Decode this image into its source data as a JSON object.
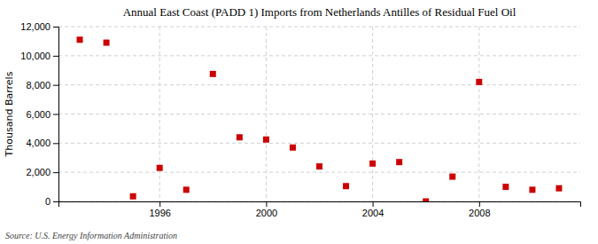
{
  "chart_data": {
    "type": "scatter",
    "title": "Annual East Coast (PADD 1) Imports from Netherlands Antilles of Residual Fuel Oil",
    "ylabel": "Thousand Barrels",
    "annotation": "Source: U.S. Energy Information Administration",
    "x": [
      1993,
      1994,
      1995,
      1996,
      1997,
      1998,
      1999,
      2000,
      2001,
      2002,
      2003,
      2004,
      2005,
      2006,
      2007,
      2008,
      2009,
      2010,
      2011
    ],
    "values": [
      11100,
      10900,
      350,
      2300,
      800,
      8750,
      4400,
      4250,
      3700,
      2400,
      1050,
      2600,
      2700,
      0,
      1700,
      8200,
      1000,
      800,
      900
    ],
    "color": "#cc0000",
    "marker": "square",
    "xlim": [
      1992.2,
      2011.8
    ],
    "xticks": [
      1996,
      2000,
      2004,
      2008
    ],
    "ylim": [
      0,
      12000
    ],
    "yticks": [
      0,
      {
        "value": 2000,
        "label": "2,000"
      },
      {
        "value": 4000,
        "label": "4,000"
      },
      {
        "value": 6000,
        "label": "6,000"
      },
      {
        "value": 8000,
        "label": "8,000"
      },
      {
        "value": 10000,
        "label": "10,000"
      },
      {
        "value": 12000,
        "label": "12,000"
      }
    ],
    "grid": true
  }
}
